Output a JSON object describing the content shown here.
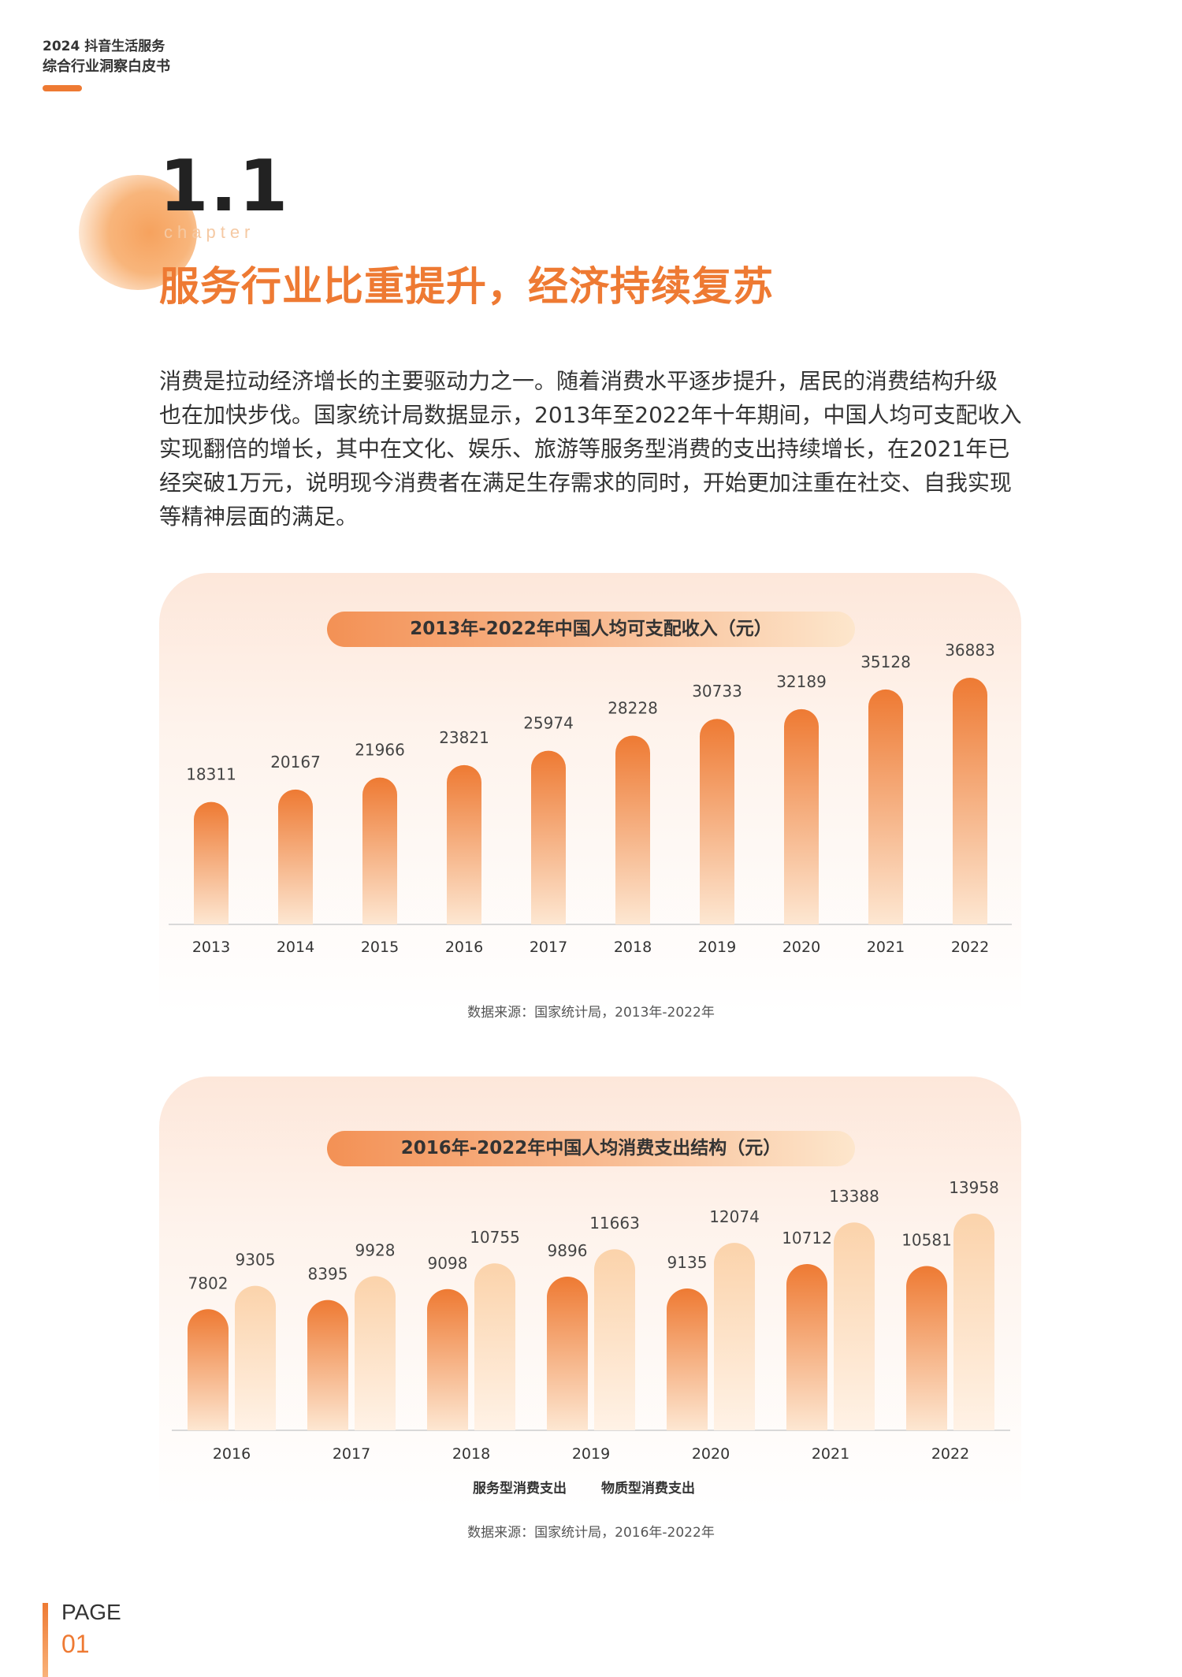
{
  "header": {
    "line1": "2024 抖音生活服务",
    "line2": "综合行业洞察白皮书"
  },
  "chapter": {
    "number": "1.1",
    "word": "chapter",
    "title": "服务行业比重提升，经济持续复苏"
  },
  "paragraph": [
    "消费是拉动经济增长的主要驱动力之一。随着消费水平逐步提升，居民的消费结构升级",
    "也在加快步伐。国家统计局数据显示，2013年至2022年十年期间，中国人均可支配收入",
    "实现翻倍的增长，其中在文化、娱乐、旅游等服务型消费的支出持续增长，在2021年已",
    "经突破1万元，说明现今消费者在满足生存需求的同时，开始更加注重在社交、自我实现",
    "等精神层面的满足。"
  ],
  "colors": {
    "accent": "#ee7a33",
    "bar_dark_top": "#ee7a33",
    "bar_dark_bottom": "#fde7d2",
    "bar_light_top": "#fbd3ab",
    "bar_light_bottom": "#fff2e6"
  },
  "chart_data": [
    {
      "type": "bar",
      "title": "2013年-2022年中国人均可支配收入（元）",
      "categories": [
        "2013",
        "2014",
        "2015",
        "2016",
        "2017",
        "2018",
        "2019",
        "2020",
        "2021",
        "2022"
      ],
      "values": [
        18311,
        20167,
        21966,
        23821,
        25974,
        28228,
        30733,
        32189,
        35128,
        36883
      ],
      "data_labels": [
        "18311",
        "20167",
        "21966",
        "23821",
        "25974",
        "28228",
        "30733",
        "32189",
        "35128",
        "36883"
      ],
      "source": "数据来源：国家统计局，2013年-2022年",
      "grid": false,
      "legend": "none"
    },
    {
      "type": "bar",
      "title": "2016年-2022年中国人均消费支出结构（元）",
      "categories": [
        "2016",
        "2017",
        "2018",
        "2019",
        "2020",
        "2021",
        "2022"
      ],
      "series": [
        {
          "name": "服务型消费支出",
          "values": [
            7802,
            8395,
            9098,
            9896,
            9135,
            10712,
            10581
          ],
          "data_labels": [
            "7802",
            "8395",
            "9098",
            "9896",
            "9135",
            "10712",
            "10581"
          ]
        },
        {
          "name": "物质型消费支出",
          "values": [
            9305,
            9928,
            10755,
            11663,
            12074,
            13388,
            13958
          ],
          "data_labels": [
            "9305",
            "9928",
            "10755",
            "11663",
            "12074",
            "13388",
            "13958"
          ]
        }
      ],
      "source": "数据来源：国家统计局，2016年-2022年",
      "grid": false,
      "legend": "bottom-center"
    }
  ],
  "footer": {
    "page_label": "PAGE",
    "page_number": "01"
  }
}
